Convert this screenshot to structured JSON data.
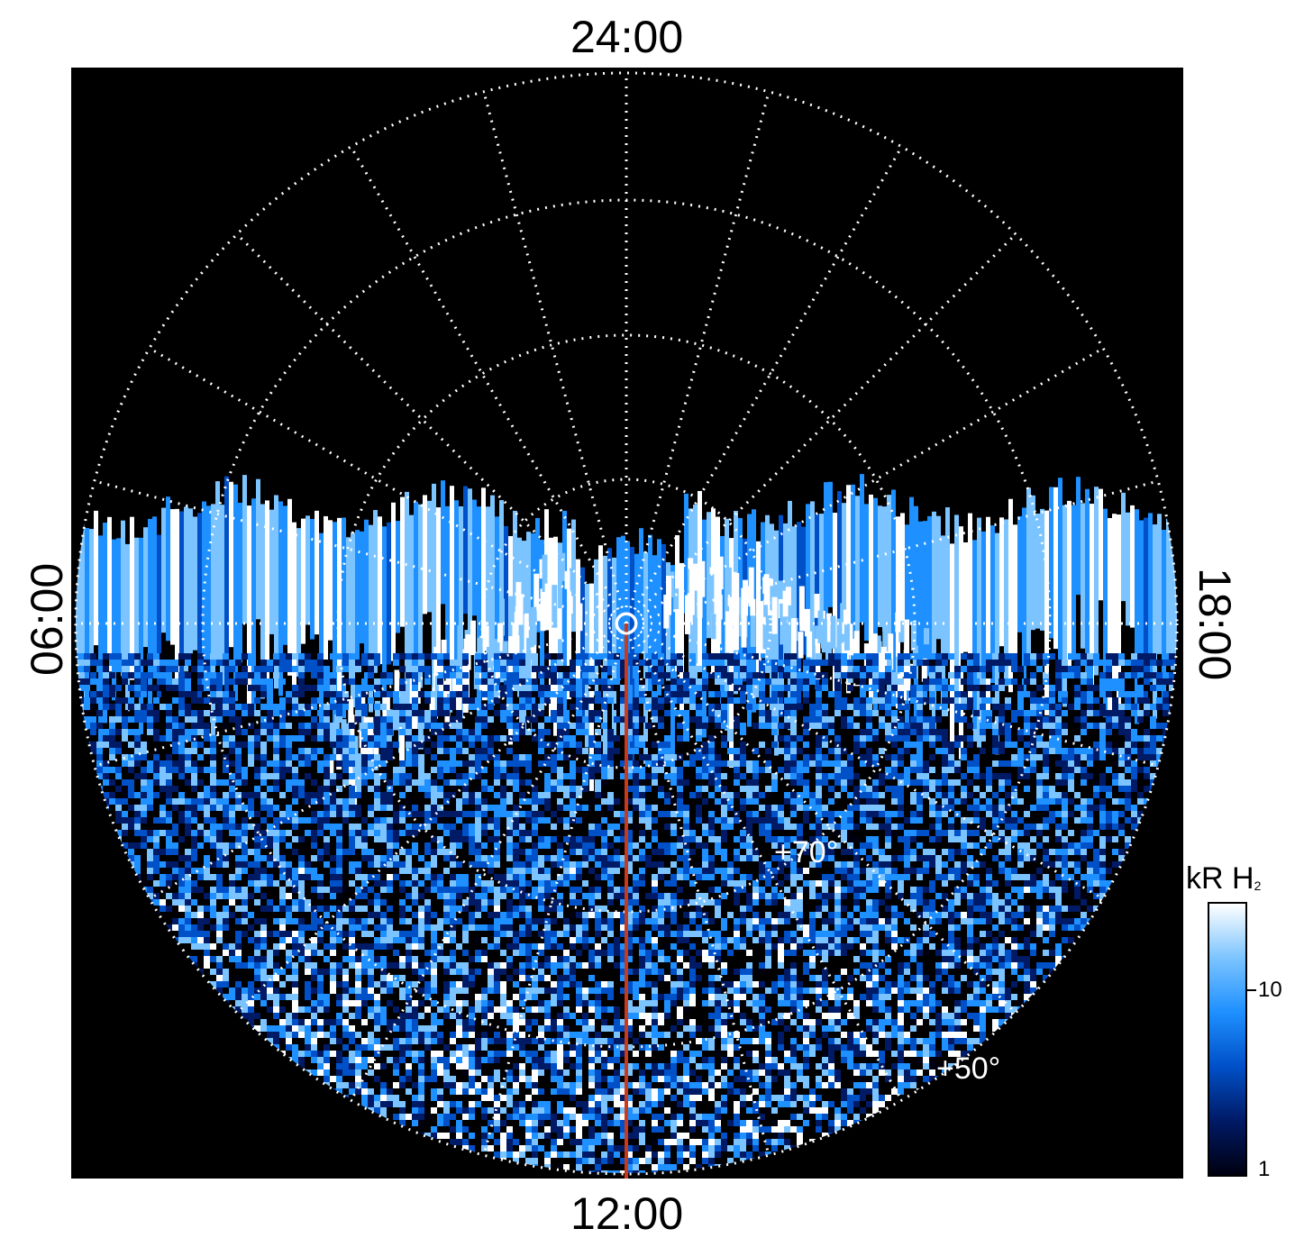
{
  "local_time_labels": {
    "top": "24:00",
    "bottom": "12:00",
    "left": "06:00",
    "right": "18:00"
  },
  "latitude_labels": [
    "+70°",
    "+50°"
  ],
  "colorbar": {
    "title": "kR H",
    "title_subscript": "2",
    "ticks": [
      "10",
      "1"
    ],
    "colors": [
      "#000010",
      "#001a66",
      "#0050c8",
      "#1e90ff",
      "#7cc4ff",
      "#ffffff"
    ]
  },
  "overlay": {
    "meridian_color": "#c83a1a",
    "grid_color": "#ffffff",
    "background": "#000000"
  }
}
